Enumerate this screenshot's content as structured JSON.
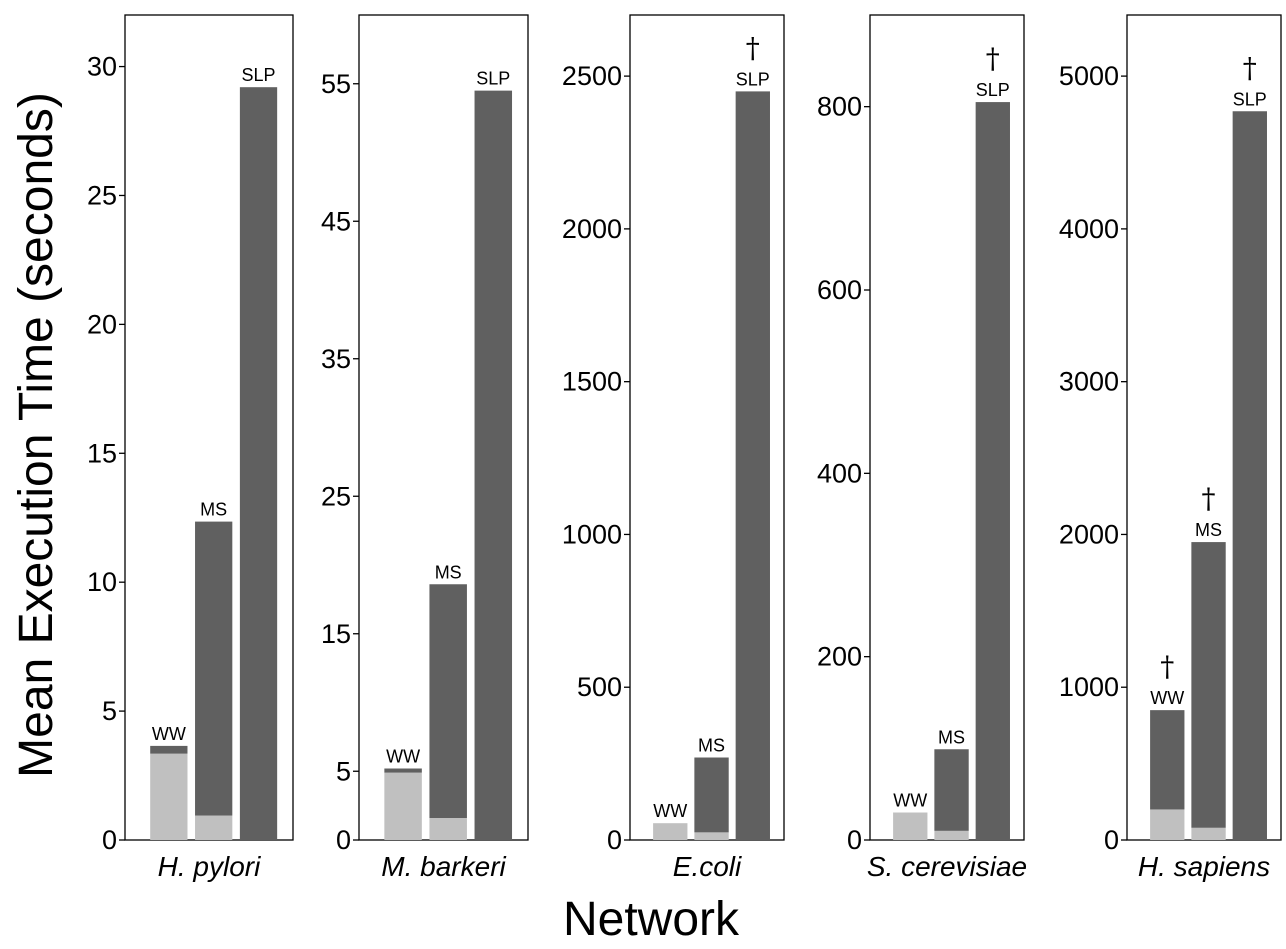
{
  "figure": {
    "ylabel": "Mean Execution Time (seconds)",
    "xlabel": "Network"
  },
  "colors": {
    "dark_bar": "#606060",
    "light_bar": "#c0c0c0",
    "frame": "#000000"
  },
  "chart_data": [
    {
      "type": "bar",
      "title": "H. pylori",
      "categories": [
        "WW",
        "MS",
        "SLP"
      ],
      "series": [
        {
          "values": [
            3.35,
            0.95,
            0
          ]
        },
        {
          "values": [
            0.3,
            11.4,
            29.2
          ]
        }
      ],
      "totals": [
        3.65,
        12.35,
        29.2
      ],
      "daggers": [
        false,
        false,
        false
      ],
      "ylim": [
        0,
        32
      ],
      "yticks": [
        0,
        5,
        10,
        15,
        20,
        25,
        30
      ]
    },
    {
      "type": "bar",
      "title": "M. barkeri",
      "categories": [
        "WW",
        "MS",
        "SLP"
      ],
      "series": [
        {
          "values": [
            4.9,
            1.6,
            0
          ]
        },
        {
          "values": [
            0.3,
            17.0,
            54.5
          ]
        }
      ],
      "totals": [
        5.2,
        18.6,
        54.5
      ],
      "daggers": [
        false,
        false,
        false
      ],
      "ylim": [
        0,
        60
      ],
      "yticks": [
        5,
        15,
        25,
        35,
        45,
        55
      ],
      "yticks_extra": [
        0
      ]
    },
    {
      "type": "bar",
      "title": "E.coli",
      "categories": [
        "WW",
        "MS",
        "SLP"
      ],
      "series": [
        {
          "values": [
            55,
            25,
            0
          ]
        },
        {
          "values": [
            0,
            245,
            2450
          ]
        }
      ],
      "totals": [
        55,
        270,
        2450
      ],
      "daggers": [
        false,
        false,
        true
      ],
      "ylim": [
        0,
        2700
      ],
      "yticks": [
        0,
        500,
        1000,
        1500,
        2000,
        2500
      ]
    },
    {
      "type": "bar",
      "title": "S. cerevisiae",
      "categories": [
        "WW",
        "MS",
        "SLP"
      ],
      "series": [
        {
          "values": [
            30,
            10,
            0
          ]
        },
        {
          "values": [
            0,
            89,
            805
          ]
        }
      ],
      "totals": [
        30,
        99,
        805
      ],
      "daggers": [
        false,
        false,
        true
      ],
      "ylim": [
        0,
        900
      ],
      "yticks": [
        0,
        200,
        400,
        600,
        800
      ]
    },
    {
      "type": "bar",
      "title": "H. sapiens",
      "categories": [
        "WW",
        "MS",
        "SLP"
      ],
      "series": [
        {
          "values": [
            200,
            80,
            0
          ]
        },
        {
          "values": [
            650,
            1870,
            4770
          ]
        }
      ],
      "totals": [
        850,
        1950,
        4770
      ],
      "daggers": [
        true,
        true,
        true
      ],
      "ylim": [
        0,
        5400
      ],
      "yticks": [
        0,
        1000,
        2000,
        3000,
        4000,
        5000
      ]
    }
  ]
}
